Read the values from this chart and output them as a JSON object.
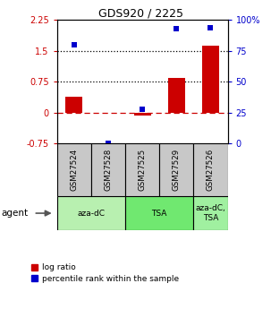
{
  "title": "GDS920 / 2225",
  "samples": [
    "GSM27524",
    "GSM27528",
    "GSM27525",
    "GSM27529",
    "GSM27526"
  ],
  "log_ratios": [
    0.38,
    0.0,
    -0.07,
    0.85,
    1.62
  ],
  "percentile_ranks": [
    80.0,
    0.0,
    28.0,
    93.0,
    94.0
  ],
  "agent_groups": [
    {
      "label": "aza-dC",
      "span": [
        0,
        2
      ],
      "color": "#b8f0b0"
    },
    {
      "label": "TSA",
      "span": [
        2,
        4
      ],
      "color": "#70e870"
    },
    {
      "label": "aza-dC,\nTSA",
      "span": [
        4,
        5
      ],
      "color": "#a0f0a0"
    }
  ],
  "ylim_left": [
    -0.75,
    2.25
  ],
  "ylim_right": [
    0,
    100
  ],
  "yticks_left": [
    -0.75,
    0,
    0.75,
    1.5,
    2.25
  ],
  "ytick_labels_left": [
    "-0.75",
    "0",
    "0.75",
    "1.5",
    "2.25"
  ],
  "yticks_right": [
    0,
    25,
    50,
    75,
    100
  ],
  "ytick_labels_right": [
    "0",
    "25",
    "50",
    "75",
    "100%"
  ],
  "hlines": [
    0.75,
    1.5
  ],
  "bar_color": "#cc0000",
  "dot_color": "#0000cc",
  "zero_line_color": "#cc0000",
  "hline_color": "#000000",
  "bg_color": "#ffffff",
  "tick_bg_color": "#c8c8c8",
  "legend_bar_label": "log ratio",
  "legend_dot_label": "percentile rank within the sample",
  "agent_label": "agent",
  "bar_width": 0.5
}
